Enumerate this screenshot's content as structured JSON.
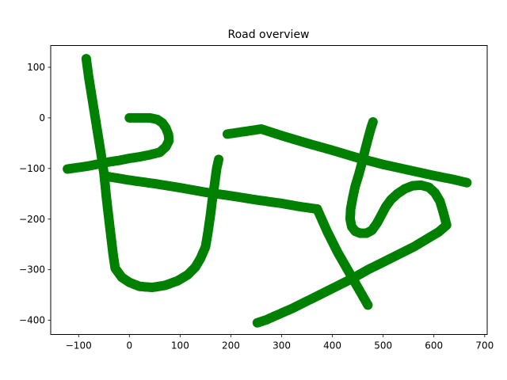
{
  "chart_data": {
    "type": "scatter",
    "title": "Road overview",
    "xlabel": "",
    "ylabel": "",
    "xlim": [
      -155,
      705
    ],
    "ylim": [
      -428,
      143
    ],
    "x_ticks": [
      -100,
      0,
      100,
      200,
      300,
      400,
      500,
      600,
      700
    ],
    "y_ticks": [
      -400,
      -300,
      -200,
      -100,
      0,
      100
    ],
    "grid": false,
    "marker_color": "#008000",
    "series": [
      {
        "points": [
          [
            -85,
            117
          ],
          [
            -80,
            80
          ],
          [
            -72,
            30
          ],
          [
            -64,
            -20
          ],
          [
            -56,
            -70
          ],
          [
            -50,
            -110
          ],
          [
            -45,
            -160
          ],
          [
            -38,
            -220
          ],
          [
            -32,
            -270
          ],
          [
            -28,
            -297
          ],
          [
            -15,
            -315
          ],
          [
            0,
            -325
          ],
          [
            20,
            -333
          ],
          [
            45,
            -335
          ],
          [
            70,
            -331
          ],
          [
            95,
            -322
          ],
          [
            115,
            -310
          ],
          [
            130,
            -295
          ],
          [
            140,
            -278
          ],
          [
            150,
            -255
          ],
          [
            155,
            -225
          ],
          [
            160,
            -190
          ],
          [
            163,
            -165
          ],
          [
            168,
            -130
          ],
          [
            172,
            -100
          ],
          [
            176,
            -82
          ]
        ]
      },
      {
        "points": [
          [
            0,
            0
          ],
          [
            20,
            0
          ],
          [
            40,
            0
          ],
          [
            55,
            -3
          ],
          [
            65,
            -10
          ],
          [
            72,
            -20
          ],
          [
            77,
            -33
          ],
          [
            78,
            -45
          ],
          [
            72,
            -57
          ],
          [
            60,
            -68
          ],
          [
            40,
            -73
          ],
          [
            20,
            -77
          ],
          [
            0,
            -80
          ],
          [
            -20,
            -84
          ],
          [
            -40,
            -87
          ],
          [
            -60,
            -91
          ],
          [
            -80,
            -95
          ],
          [
            -100,
            -98
          ],
          [
            -122,
            -101
          ]
        ]
      },
      {
        "points": [
          [
            -48,
            -115
          ],
          [
            0,
            -123
          ],
          [
            50,
            -130
          ],
          [
            100,
            -138
          ],
          [
            150,
            -147
          ],
          [
            200,
            -154
          ],
          [
            250,
            -162
          ],
          [
            300,
            -169
          ],
          [
            340,
            -176
          ],
          [
            370,
            -180
          ]
        ]
      },
      {
        "points": [
          [
            370,
            -180
          ],
          [
            390,
            -225
          ],
          [
            410,
            -265
          ],
          [
            430,
            -300
          ],
          [
            450,
            -335
          ],
          [
            470,
            -370
          ]
        ]
      },
      {
        "points": [
          [
            193,
            -32
          ],
          [
            220,
            -28
          ],
          [
            240,
            -25
          ],
          [
            260,
            -22
          ],
          [
            300,
            -35
          ],
          [
            350,
            -50
          ],
          [
            400,
            -64
          ],
          [
            450,
            -79
          ],
          [
            500,
            -92
          ],
          [
            550,
            -103
          ],
          [
            600,
            -114
          ],
          [
            640,
            -122
          ],
          [
            665,
            -128
          ]
        ]
      },
      {
        "points": [
          [
            480,
            -8
          ],
          [
            476,
            -20
          ],
          [
            470,
            -42
          ],
          [
            464,
            -65
          ],
          [
            458,
            -90
          ],
          [
            452,
            -112
          ],
          [
            445,
            -135
          ],
          [
            440,
            -158
          ],
          [
            436,
            -180
          ],
          [
            435,
            -200
          ],
          [
            438,
            -215
          ],
          [
            445,
            -224
          ],
          [
            455,
            -228
          ],
          [
            467,
            -228
          ],
          [
            478,
            -222
          ],
          [
            488,
            -208
          ],
          [
            496,
            -193
          ],
          [
            505,
            -176
          ],
          [
            515,
            -162
          ],
          [
            528,
            -150
          ],
          [
            543,
            -140
          ],
          [
            558,
            -134
          ],
          [
            575,
            -133
          ],
          [
            590,
            -137
          ],
          [
            602,
            -148
          ],
          [
            612,
            -165
          ],
          [
            618,
            -185
          ],
          [
            622,
            -200
          ],
          [
            625,
            -212
          ],
          [
            610,
            -225
          ],
          [
            585,
            -240
          ],
          [
            560,
            -255
          ],
          [
            530,
            -270
          ],
          [
            500,
            -285
          ],
          [
            470,
            -300
          ],
          [
            440,
            -317
          ],
          [
            410,
            -332
          ],
          [
            380,
            -347
          ],
          [
            350,
            -362
          ],
          [
            320,
            -377
          ],
          [
            290,
            -390
          ],
          [
            270,
            -399
          ],
          [
            252,
            -405
          ]
        ]
      }
    ]
  }
}
